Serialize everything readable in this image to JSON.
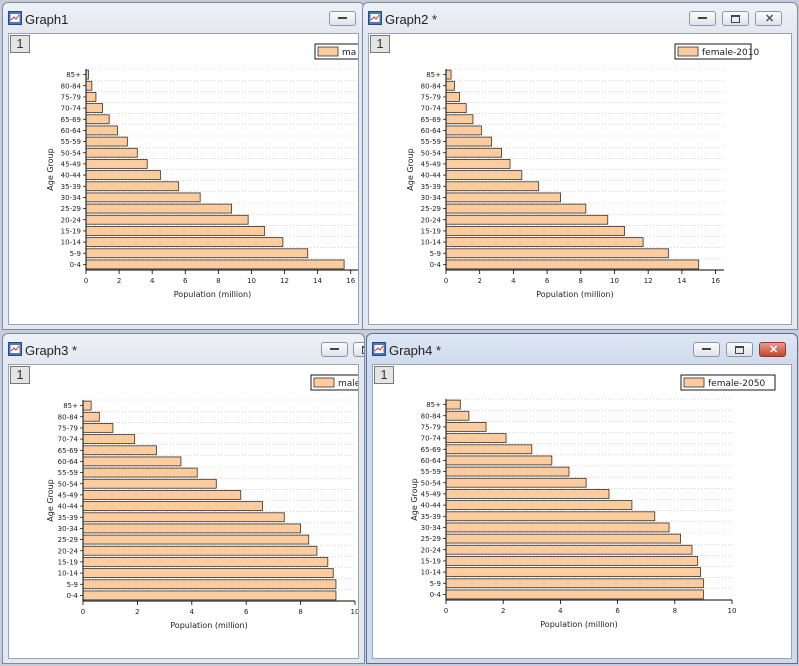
{
  "colors": {
    "bar_fill": "#fccb9e",
    "bar_stroke": "#333333",
    "grid": "#b5b5b5"
  },
  "windows": [
    {
      "title": "Graph1",
      "layer": "1",
      "controls": [
        "minimize"
      ],
      "chart_data": {
        "type": "bar",
        "orientation": "horizontal",
        "categories": [
          "0-4",
          "5-9",
          "10-14",
          "15-19",
          "20-24",
          "25-29",
          "30-34",
          "35-39",
          "40-44",
          "45-49",
          "50-54",
          "55-59",
          "60-64",
          "65-69",
          "70-74",
          "75-79",
          "80-84",
          "85+"
        ],
        "series": [
          {
            "name": "ma",
            "values": [
              15.6,
              13.4,
              11.9,
              10.8,
              9.8,
              8.8,
              6.9,
              5.6,
              4.5,
              3.7,
              3.1,
              2.5,
              1.9,
              1.4,
              1.0,
              0.6,
              0.35,
              0.15
            ]
          }
        ],
        "xlabel": "Population (million)",
        "ylabel": "Age Group",
        "xlim": [
          0,
          16.5
        ],
        "xticks": [
          0,
          2,
          4,
          6,
          8,
          10,
          12,
          14,
          16
        ],
        "grid": "horizontal-dotted",
        "legend": "top-right"
      }
    },
    {
      "title": "Graph2 *",
      "layer": "1",
      "controls": [
        "minimize",
        "maximize",
        "close"
      ],
      "chart_data": {
        "type": "bar",
        "orientation": "horizontal",
        "categories": [
          "0-4",
          "5-9",
          "10-14",
          "15-19",
          "20-24",
          "25-29",
          "30-34",
          "35-39",
          "40-44",
          "45-49",
          "50-54",
          "55-59",
          "60-64",
          "65-69",
          "70-74",
          "75-79",
          "80-84",
          "85+"
        ],
        "series": [
          {
            "name": "female-2010",
            "values": [
              15.0,
              13.2,
              11.7,
              10.6,
              9.6,
              8.3,
              6.8,
              5.5,
              4.5,
              3.8,
              3.3,
              2.7,
              2.1,
              1.6,
              1.2,
              0.8,
              0.5,
              0.3
            ]
          }
        ],
        "xlabel": "Population (million)",
        "ylabel": "Age Group",
        "xlim": [
          0,
          16.5
        ],
        "xticks": [
          0,
          2,
          4,
          6,
          8,
          10,
          12,
          14,
          16
        ],
        "grid": "horizontal-dotted",
        "legend": "top-right"
      }
    },
    {
      "title": "Graph3 *",
      "layer": "1",
      "controls": [
        "minimize",
        "maximize"
      ],
      "chart_data": {
        "type": "bar",
        "orientation": "horizontal",
        "categories": [
          "0-4",
          "5-9",
          "10-14",
          "15-19",
          "20-24",
          "25-29",
          "30-34",
          "35-39",
          "40-44",
          "45-49",
          "50-54",
          "55-59",
          "60-64",
          "65-69",
          "70-74",
          "75-79",
          "80-84",
          "85+"
        ],
        "series": [
          {
            "name": "male-",
            "values": [
              9.3,
              9.3,
              9.2,
              9.0,
              8.6,
              8.3,
              8.0,
              7.4,
              6.6,
              5.8,
              4.9,
              4.2,
              3.6,
              2.7,
              1.9,
              1.1,
              0.6,
              0.3
            ]
          }
        ],
        "xlabel": "Population (million)",
        "ylabel": "Age Group",
        "xlim": [
          0,
          10
        ],
        "xticks": [
          0,
          2,
          4,
          6,
          8,
          10
        ],
        "grid": "horizontal-dotted",
        "legend": "top-right"
      }
    },
    {
      "title": "Graph4 *",
      "layer": "1",
      "controls": [
        "minimize",
        "maximize",
        "close"
      ],
      "chart_data": {
        "type": "bar",
        "orientation": "horizontal",
        "categories": [
          "0-4",
          "5-9",
          "10-14",
          "15-19",
          "20-24",
          "25-29",
          "30-34",
          "35-39",
          "40-44",
          "45-49",
          "50-54",
          "55-59",
          "60-64",
          "65-69",
          "70-74",
          "75-79",
          "80-84",
          "85+"
        ],
        "series": [
          {
            "name": "female-2050",
            "values": [
              9.0,
              9.0,
              8.9,
              8.8,
              8.6,
              8.2,
              7.8,
              7.3,
              6.5,
              5.7,
              4.9,
              4.3,
              3.7,
              3.0,
              2.1,
              1.4,
              0.8,
              0.5
            ]
          }
        ],
        "xlabel": "Population (million)",
        "ylabel": "Age Group",
        "xlim": [
          0,
          10
        ],
        "xticks": [
          0,
          2,
          4,
          6,
          8,
          10
        ],
        "grid": "horizontal-dotted",
        "legend": "top-right"
      }
    }
  ]
}
